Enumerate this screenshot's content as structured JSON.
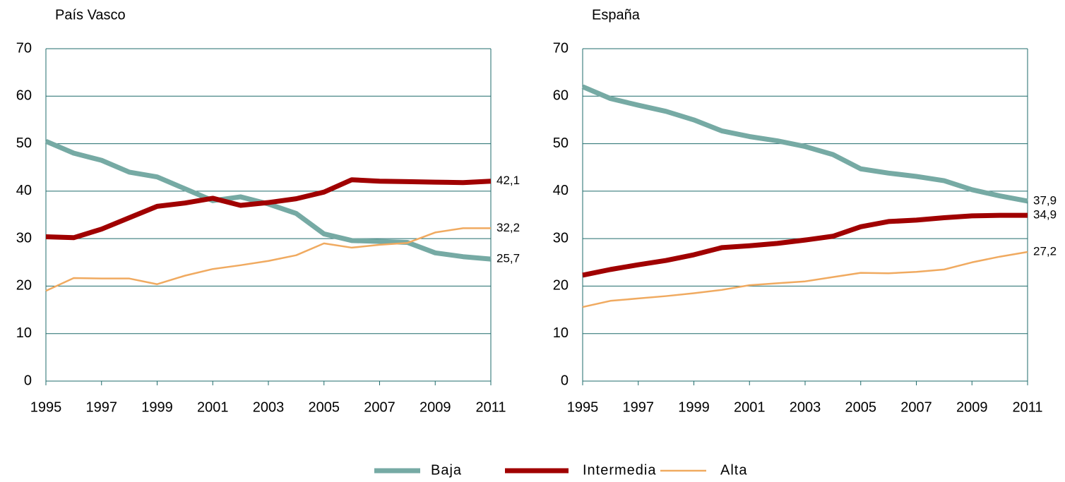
{
  "chart_data": [
    {
      "type": "line",
      "title": "País Vasco",
      "x": [
        1995,
        1996,
        1997,
        1998,
        1999,
        2000,
        2001,
        2002,
        2003,
        2004,
        2005,
        2006,
        2007,
        2008,
        2009,
        2010,
        2011
      ],
      "xlim": [
        1995,
        2011
      ],
      "xticks": [
        1995,
        1997,
        1999,
        2001,
        2003,
        2005,
        2007,
        2009,
        2011
      ],
      "ylim": [
        0,
        70
      ],
      "yticks": [
        0,
        10,
        20,
        30,
        40,
        50,
        60,
        70
      ],
      "grid": true,
      "series": [
        {
          "name": "Baja",
          "color": "#76aaa4",
          "line_width": 7,
          "values": [
            50.5,
            48,
            46.5,
            44,
            43,
            40.5,
            38,
            38.8,
            37.3,
            35.3,
            31,
            29.6,
            29.4,
            29.2,
            27,
            26.2,
            25.7
          ],
          "value_labels": [
            null,
            null,
            null,
            null,
            null,
            null,
            null,
            null,
            null,
            null,
            null,
            null,
            null,
            null,
            null,
            null,
            "25,7"
          ]
        },
        {
          "name": "Intermedia",
          "color": "#a00000",
          "line_width": 7,
          "values": [
            30.4,
            30.2,
            32,
            34.4,
            36.8,
            37.5,
            38.5,
            37,
            37.6,
            38.4,
            39.8,
            42.4,
            42.1,
            42,
            41.9,
            41.8,
            42.1
          ],
          "value_labels": [
            null,
            null,
            null,
            null,
            null,
            null,
            null,
            null,
            null,
            null,
            null,
            null,
            null,
            null,
            null,
            null,
            "42,1"
          ]
        },
        {
          "name": "Alta",
          "color": "#f0aa60",
          "line_width": 2.5,
          "values": [
            19,
            21.7,
            21.6,
            21.6,
            20.4,
            22.2,
            23.6,
            24.4,
            25.3,
            26.5,
            29,
            28.1,
            28.7,
            29.1,
            31.3,
            32.2,
            32.2
          ],
          "value_labels": [
            null,
            null,
            null,
            null,
            null,
            null,
            null,
            null,
            null,
            null,
            null,
            null,
            null,
            null,
            null,
            null,
            "32,2"
          ]
        }
      ]
    },
    {
      "type": "line",
      "title": "España",
      "x": [
        1995,
        1996,
        1997,
        1998,
        1999,
        2000,
        2001,
        2002,
        2003,
        2004,
        2005,
        2006,
        2007,
        2008,
        2009,
        2010,
        2011
      ],
      "xlim": [
        1995,
        2011
      ],
      "xticks": [
        1995,
        1997,
        1999,
        2001,
        2003,
        2005,
        2007,
        2009,
        2011
      ],
      "ylim": [
        0,
        70
      ],
      "yticks": [
        0,
        10,
        20,
        30,
        40,
        50,
        60,
        70
      ],
      "grid": true,
      "series": [
        {
          "name": "Baja",
          "color": "#76aaa4",
          "line_width": 7,
          "values": [
            62,
            59.5,
            58.1,
            56.8,
            55,
            52.7,
            51.5,
            50.6,
            49.4,
            47.7,
            44.7,
            43.8,
            43.1,
            42.2,
            40.3,
            39,
            37.9
          ],
          "value_labels": [
            null,
            null,
            null,
            null,
            null,
            null,
            null,
            null,
            null,
            null,
            null,
            null,
            null,
            null,
            null,
            null,
            "37,9"
          ]
        },
        {
          "name": "Intermedia",
          "color": "#a00000",
          "line_width": 7,
          "values": [
            22.3,
            23.5,
            24.5,
            25.4,
            26.6,
            28.1,
            28.5,
            29,
            29.7,
            30.5,
            32.5,
            33.6,
            33.9,
            34.4,
            34.8,
            34.9,
            34.9
          ],
          "value_labels": [
            null,
            null,
            null,
            null,
            null,
            null,
            null,
            null,
            null,
            null,
            null,
            null,
            null,
            null,
            null,
            null,
            "34,9"
          ]
        },
        {
          "name": "Alta",
          "color": "#f0aa60",
          "line_width": 2.5,
          "values": [
            15.6,
            16.9,
            17.4,
            17.9,
            18.5,
            19.2,
            20.2,
            20.6,
            21,
            21.9,
            22.8,
            22.7,
            23,
            23.5,
            25,
            26.2,
            27.2
          ],
          "value_labels": [
            null,
            null,
            null,
            null,
            null,
            null,
            null,
            null,
            null,
            null,
            null,
            null,
            null,
            null,
            null,
            null,
            "27,2"
          ]
        }
      ]
    }
  ]
}
